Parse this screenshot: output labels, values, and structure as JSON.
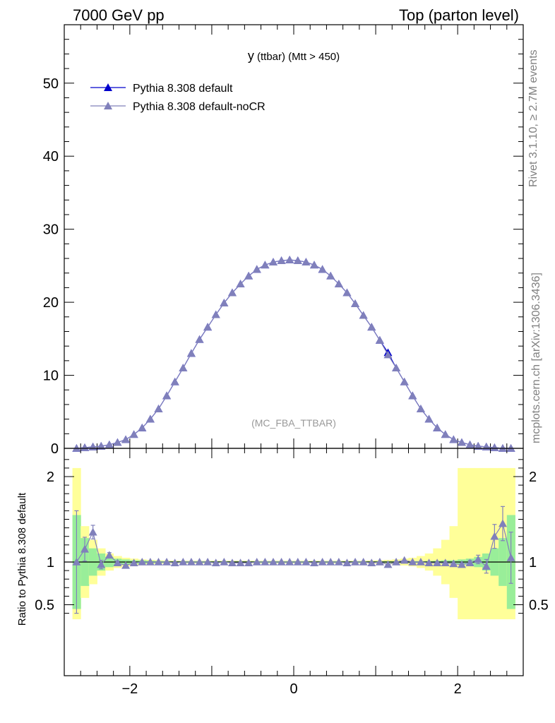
{
  "header": {
    "left": "7000 GeV pp",
    "right": "Top (parton level)"
  },
  "side": {
    "rivet": "Rivet 3.1.10, ≥ 2.7M events",
    "mcplots": "mcplots.cern.ch [arXiv:1306.3436]"
  },
  "chart_data": [
    {
      "type": "line",
      "title": "y (ttbar) (Mtt > 450)",
      "title_main": "y",
      "title_sub": " (ttbar) (Mtt > 450)",
      "watermark": "(MC_FBA_TTBAR)",
      "xlim": [
        -2.8,
        2.8
      ],
      "ylim": [
        0,
        58
      ],
      "yticks": [
        0,
        10,
        20,
        30,
        40,
        50
      ],
      "legend_position": "top-left",
      "series": [
        {
          "name": "Pythia 8.308 default",
          "color": "#0000cc",
          "x": [
            -2.65,
            -2.55,
            -2.45,
            -2.35,
            -2.25,
            -2.15,
            -2.05,
            -1.95,
            -1.85,
            -1.75,
            -1.65,
            -1.55,
            -1.45,
            -1.35,
            -1.25,
            -1.15,
            -1.05,
            -0.95,
            -0.85,
            -0.75,
            -0.65,
            -0.55,
            -0.45,
            -0.35,
            -0.25,
            -0.15,
            -0.05,
            0.05,
            0.15,
            0.25,
            0.35,
            0.45,
            0.55,
            0.65,
            0.75,
            0.85,
            0.95,
            1.05,
            1.15,
            1.25,
            1.35,
            1.45,
            1.55,
            1.65,
            1.75,
            1.85,
            1.95,
            2.05,
            2.15,
            2.25,
            2.35,
            2.45,
            2.55,
            2.65
          ],
          "values": [
            0.0,
            0.1,
            0.2,
            0.3,
            0.5,
            0.8,
            1.2,
            1.9,
            2.8,
            4.0,
            5.4,
            7.2,
            9.1,
            11.0,
            13.0,
            14.9,
            16.6,
            18.3,
            19.9,
            21.3,
            22.5,
            23.6,
            24.5,
            25.1,
            25.5,
            25.7,
            25.8,
            25.7,
            25.5,
            25.1,
            24.5,
            23.6,
            22.5,
            21.3,
            19.8,
            18.2,
            16.6,
            14.8,
            13.1,
            11.0,
            9.1,
            7.2,
            5.4,
            4.0,
            2.8,
            1.9,
            1.2,
            0.8,
            0.5,
            0.3,
            0.2,
            0.1,
            0.0,
            0.0
          ]
        },
        {
          "name": "Pythia 8.308 default-noCR",
          "color": "#8080bb",
          "x": [
            -2.65,
            -2.55,
            -2.45,
            -2.35,
            -2.25,
            -2.15,
            -2.05,
            -1.95,
            -1.85,
            -1.75,
            -1.65,
            -1.55,
            -1.45,
            -1.35,
            -1.25,
            -1.15,
            -1.05,
            -0.95,
            -0.85,
            -0.75,
            -0.65,
            -0.55,
            -0.45,
            -0.35,
            -0.25,
            -0.15,
            -0.05,
            0.05,
            0.15,
            0.25,
            0.35,
            0.45,
            0.55,
            0.65,
            0.75,
            0.85,
            0.95,
            1.05,
            1.15,
            1.25,
            1.35,
            1.45,
            1.55,
            1.65,
            1.75,
            1.85,
            1.95,
            2.05,
            2.15,
            2.25,
            2.35,
            2.45,
            2.55,
            2.65
          ],
          "values": [
            0.0,
            0.1,
            0.2,
            0.3,
            0.5,
            0.8,
            1.2,
            1.9,
            2.8,
            4.0,
            5.4,
            7.2,
            9.1,
            11.0,
            13.0,
            14.9,
            16.6,
            18.3,
            19.9,
            21.3,
            22.5,
            23.6,
            24.5,
            25.1,
            25.5,
            25.7,
            25.8,
            25.7,
            25.5,
            25.1,
            24.5,
            23.6,
            22.5,
            21.3,
            19.8,
            18.2,
            16.6,
            14.8,
            12.8,
            11.0,
            9.1,
            7.2,
            5.4,
            4.0,
            2.8,
            1.9,
            1.2,
            0.8,
            0.5,
            0.3,
            0.2,
            0.1,
            0.0,
            0.0
          ]
        }
      ]
    },
    {
      "type": "line",
      "ylabel": "Ratio to Pythia 8.308 default",
      "xlim": [
        -2.8,
        2.8
      ],
      "ylim": [
        0.33,
        2.25
      ],
      "xticks": [
        -2,
        0,
        2
      ],
      "yticks": [
        0.5,
        1,
        2
      ],
      "band_edges": [
        -2.7,
        -2.6,
        -2.5,
        -2.4,
        -2.3,
        -2.2,
        -2.1,
        -2.0,
        -1.9,
        -1.8,
        -1.7,
        -1.6,
        -1.5,
        -1.4,
        -1.3,
        -1.2,
        -1.1,
        -1.0,
        -0.9,
        -0.8,
        -0.7,
        -0.6,
        -0.5,
        -0.4,
        -0.3,
        -0.2,
        -0.1,
        0.0,
        0.1,
        0.2,
        0.3,
        0.4,
        0.5,
        0.6,
        0.7,
        0.8,
        0.9,
        1.0,
        1.1,
        1.2,
        1.3,
        1.4,
        1.5,
        1.6,
        1.7,
        1.8,
        1.9,
        2.0,
        2.1,
        2.2,
        2.3,
        2.4,
        2.5,
        2.6,
        2.7
      ],
      "green_halfwidth": [
        0.55,
        0.28,
        0.16,
        0.1,
        0.06,
        0.04,
        0.03,
        0.02,
        0.02,
        0.015,
        0.012,
        0.01,
        0.01,
        0.01,
        0.01,
        0.01,
        0.01,
        0.01,
        0.01,
        0.01,
        0.01,
        0.01,
        0.01,
        0.01,
        0.01,
        0.01,
        0.01,
        0.01,
        0.01,
        0.01,
        0.01,
        0.01,
        0.01,
        0.01,
        0.01,
        0.01,
        0.01,
        0.01,
        0.01,
        0.01,
        0.01,
        0.01,
        0.01,
        0.012,
        0.015,
        0.02,
        0.02,
        0.03,
        0.04,
        0.06,
        0.1,
        0.16,
        0.28,
        0.55
      ],
      "yellow_halfwidth": [
        1.1,
        0.42,
        0.26,
        0.16,
        0.1,
        0.07,
        0.05,
        0.04,
        0.03,
        0.025,
        0.02,
        0.018,
        0.016,
        0.015,
        0.015,
        0.015,
        0.015,
        0.015,
        0.015,
        0.015,
        0.015,
        0.015,
        0.015,
        0.015,
        0.015,
        0.015,
        0.015,
        0.015,
        0.015,
        0.015,
        0.015,
        0.015,
        0.015,
        0.015,
        0.015,
        0.016,
        0.018,
        0.02,
        0.025,
        0.03,
        0.04,
        0.05,
        0.07,
        0.1,
        0.16,
        0.26,
        0.42,
        1.1,
        1.1,
        1.1,
        1.1,
        1.1,
        1.1,
        1.1
      ],
      "series": [
        {
          "name": "Pythia 8.308 default-noCR",
          "color": "#8080bb",
          "x": [
            -2.65,
            -2.55,
            -2.45,
            -2.35,
            -2.25,
            -2.15,
            -2.05,
            -1.95,
            -1.85,
            -1.75,
            -1.65,
            -1.55,
            -1.45,
            -1.35,
            -1.25,
            -1.15,
            -1.05,
            -0.95,
            -0.85,
            -0.75,
            -0.65,
            -0.55,
            -0.45,
            -0.35,
            -0.25,
            -0.15,
            -0.05,
            0.05,
            0.15,
            0.25,
            0.35,
            0.45,
            0.55,
            0.65,
            0.75,
            0.85,
            0.95,
            1.05,
            1.15,
            1.25,
            1.35,
            1.45,
            1.55,
            1.65,
            1.75,
            1.85,
            1.95,
            2.05,
            2.15,
            2.25,
            2.35,
            2.45,
            2.55,
            2.65
          ],
          "values": [
            1.0,
            1.15,
            1.35,
            0.97,
            1.08,
            0.99,
            0.96,
            0.99,
            1.0,
            1.0,
            1.0,
            1.0,
            0.99,
            1.0,
            1.0,
            1.0,
            1.0,
            0.99,
            1.0,
            0.99,
            0.99,
            0.99,
            1.0,
            1.0,
            1.0,
            1.0,
            1.0,
            1.0,
            1.0,
            0.99,
            1.0,
            1.0,
            1.0,
            0.99,
            1.0,
            1.0,
            0.99,
            1.0,
            0.97,
            1.0,
            1.02,
            1.0,
            1.0,
            0.99,
            0.99,
            0.99,
            0.98,
            0.97,
            0.99,
            1.03,
            0.95,
            1.3,
            1.45,
            1.05
          ],
          "err": [
            0.6,
            0.14,
            0.08,
            0.05,
            0.03,
            0.02,
            0.01,
            0.01,
            0.01,
            0.01,
            0.01,
            0.01,
            0.01,
            0.01,
            0.01,
            0.01,
            0.01,
            0.01,
            0.01,
            0.01,
            0.01,
            0.01,
            0.01,
            0.01,
            0.01,
            0.01,
            0.01,
            0.01,
            0.01,
            0.01,
            0.01,
            0.01,
            0.01,
            0.01,
            0.01,
            0.01,
            0.01,
            0.01,
            0.01,
            0.01,
            0.01,
            0.01,
            0.01,
            0.01,
            0.01,
            0.01,
            0.01,
            0.02,
            0.03,
            0.05,
            0.08,
            0.14,
            0.2,
            0.3
          ]
        }
      ]
    }
  ]
}
